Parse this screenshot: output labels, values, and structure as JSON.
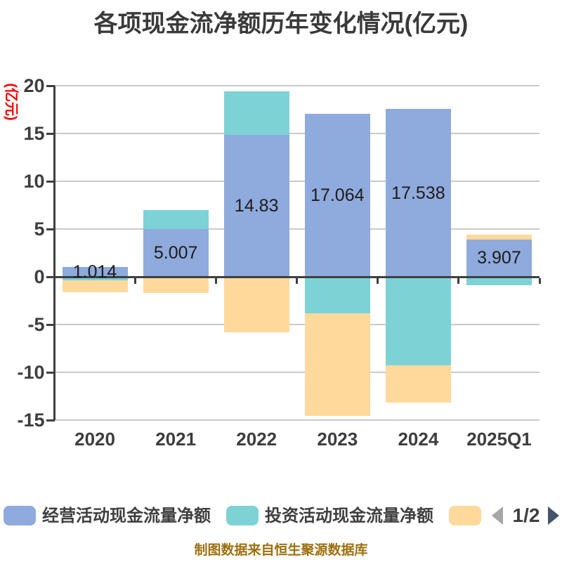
{
  "title": "各项现金流净额历年变化情况(亿元)",
  "y_axis_title": "(亿元)",
  "footer_credit": "制图数据来自恒生聚源数据库",
  "legend": {
    "items": [
      {
        "label": "经营活动现金流量净额",
        "color": "#8FAADC",
        "label_visible": true
      },
      {
        "label": "投资活动现金流量净额",
        "color": "#7DD2D6",
        "label_visible": true
      },
      {
        "label": "",
        "color": "#FFD99C",
        "label_visible": false
      }
    ],
    "pagination": {
      "text": "1/2",
      "prev_icon": "left-triangle-icon",
      "next_icon": "right-triangle-icon"
    }
  },
  "chart_data": {
    "type": "bar",
    "stacked": true,
    "title": "各项现金流净额历年变化情况(亿元)",
    "ylabel": "(亿元)",
    "categories": [
      "2020",
      "2021",
      "2022",
      "2023",
      "2024",
      "2025Q1"
    ],
    "series": [
      {
        "name": "经营活动现金流量净额",
        "color": "#8FAADC",
        "values": [
          1.014,
          5.007,
          14.83,
          17.064,
          17.538,
          3.907
        ],
        "data_labels": [
          "1.014",
          "5.007",
          "14.83",
          "17.064",
          "17.538",
          "3.907"
        ]
      },
      {
        "name": "投资活动现金流量净额",
        "color": "#7DD2D6",
        "values": [
          -0.4,
          2.0,
          4.6,
          -3.8,
          -9.25,
          -0.9
        ]
      },
      {
        "name": "",
        "color": "#FFD99C",
        "values": [
          -1.25,
          -1.7,
          -5.8,
          -10.75,
          -3.9,
          0.5
        ],
        "label_visible": false
      }
    ],
    "ylim": [
      -15,
      20
    ],
    "yticks": [
      20,
      15,
      10,
      5,
      0,
      -5,
      -10,
      -15
    ],
    "grid": true,
    "legend_position": "bottom"
  },
  "colors": {
    "grid": "#CACACA",
    "axis": "#3F3F3F",
    "tick_text": "#3D3D3D",
    "value_label_text": "#1C1C1C",
    "title_text": "#3A3A3A",
    "y_axis_title_text": "#FF0000",
    "footer_text": "#9D700E",
    "pager_prev": "#A6A6A6",
    "pager_next": "#44546A"
  }
}
